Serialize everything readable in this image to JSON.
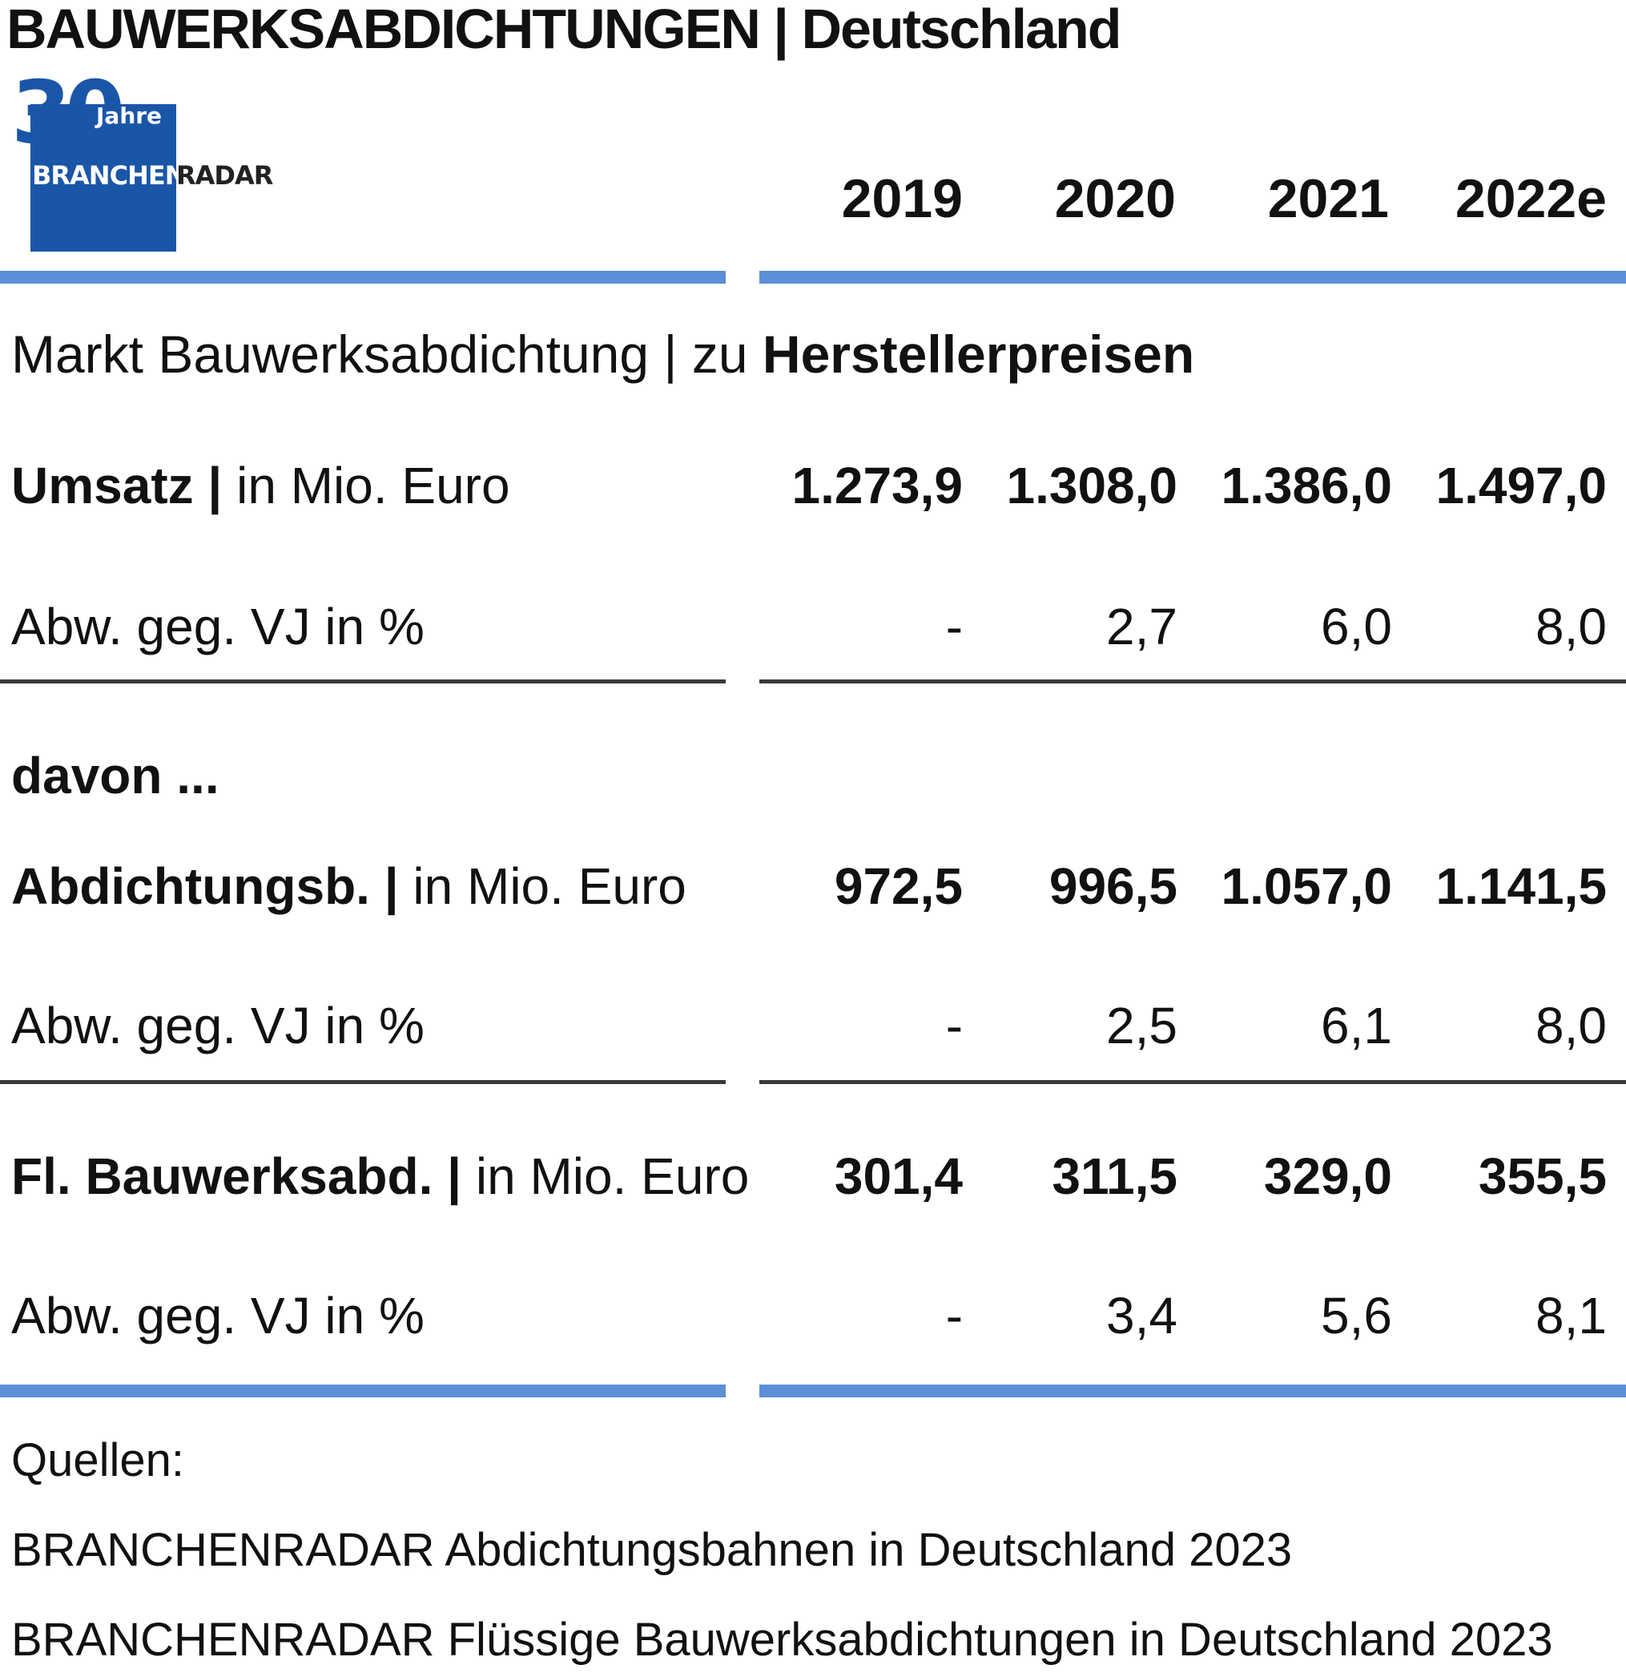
{
  "title": "BAUWERKSABDICHTUNGEN | Deutschland",
  "logo": {
    "anniversary_number": "30",
    "anniversary_word": "Jahre",
    "brand_left": "BRANCHEN",
    "brand_right": "RADAR"
  },
  "chart_data": {
    "type": "table",
    "title": "BAUWERKSABDICHTUNGEN | Deutschland",
    "subtitle": {
      "prefix": "Markt Bauwerksabdichtung | zu ",
      "emphasis": "Herstellerpreisen"
    },
    "columns": [
      "2019",
      "2020",
      "2021",
      "2022e"
    ],
    "section_label": "davon ...",
    "rows": [
      {
        "label_bold": "Umsatz | ",
        "label_unit": "in Mio. Euro",
        "values": [
          "1.273,9",
          "1.308,0",
          "1.386,0",
          "1.497,0"
        ],
        "change_label": "Abw. geg. VJ in %",
        "change": [
          "-",
          "2,7",
          "6,0",
          "8,0"
        ]
      },
      {
        "label_bold": "Abdichtungsb. | ",
        "label_unit": "in Mio. Euro",
        "values": [
          "972,5",
          "996,5",
          "1.057,0",
          "1.141,5"
        ],
        "change_label": "Abw. geg. VJ in %",
        "change": [
          "-",
          "2,5",
          "6,1",
          "8,0"
        ]
      },
      {
        "label_bold": "Fl. Bauwerksabd. | ",
        "label_unit": "in Mio. Euro",
        "values": [
          "301,4",
          "311,5",
          "329,0",
          "355,5"
        ],
        "change_label": "Abw. geg. VJ in %",
        "change": [
          "-",
          "3,4",
          "5,6",
          "8,1"
        ]
      }
    ],
    "sources": {
      "heading": "Quellen:",
      "items": [
        "BRANCHENRADAR Abdichtungsbahnen in Deutschland 2023",
        "BRANCHENRADAR Flüssige Bauwerksabdichtungen in Deutschland 2023"
      ]
    }
  },
  "colors": {
    "accent_rule": "#5b8fd6",
    "dark_rule": "#3a3a3a",
    "logo_blue": "#1a56a8"
  }
}
